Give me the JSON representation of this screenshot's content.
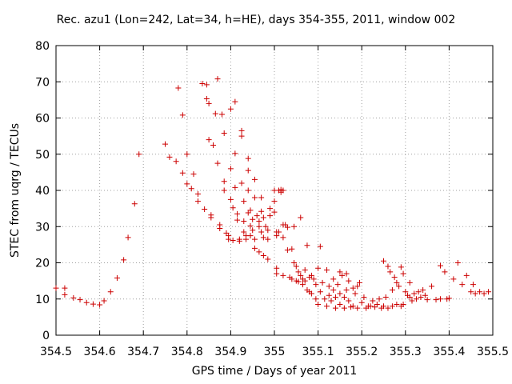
{
  "chart_data": {
    "type": "scatter",
    "title": "Rec. azu1 (Lon=242, Lat=34, h=HE), days 354-355, 2011, window 002",
    "xlabel": "GPS time / Days of year 2011",
    "ylabel": "STEC from uqrg / TECUs",
    "xlim": [
      354.5,
      355.5
    ],
    "ylim": [
      0,
      80
    ],
    "xticks": [
      "354.5",
      "354.6",
      "354.7",
      "354.8",
      "354.9",
      "355",
      "355.1",
      "355.2",
      "355.3",
      "355.4",
      "355.5"
    ],
    "yticks": [
      "0",
      "10",
      "20",
      "30",
      "40",
      "50",
      "60",
      "70",
      "80"
    ],
    "grid": true,
    "marker": "plus",
    "color": "#cc0000",
    "series": [
      {
        "points": [
          [
            354.5,
            13.0
          ],
          [
            354.52,
            13.0
          ],
          [
            354.52,
            11.2
          ],
          [
            354.54,
            10.3
          ],
          [
            354.555,
            9.8
          ],
          [
            354.57,
            9.0
          ],
          [
            354.585,
            8.6
          ],
          [
            354.6,
            8.4
          ],
          [
            354.61,
            9.5
          ],
          [
            354.625,
            12.0
          ],
          [
            354.64,
            15.8
          ],
          [
            354.655,
            20.8
          ],
          [
            354.665,
            27.0
          ],
          [
            354.68,
            36.3
          ],
          [
            354.69,
            50.0
          ],
          [
            354.75,
            52.8
          ],
          [
            354.76,
            49.2
          ],
          [
            354.775,
            48.0
          ],
          [
            354.78,
            68.3
          ],
          [
            354.79,
            60.8
          ],
          [
            354.79,
            44.8
          ],
          [
            354.8,
            50.0
          ],
          [
            354.8,
            41.8
          ],
          [
            354.81,
            40.5
          ],
          [
            354.815,
            44.5
          ],
          [
            354.825,
            39.0
          ],
          [
            354.825,
            37.0
          ],
          [
            354.835,
            69.5
          ],
          [
            354.84,
            34.8
          ],
          [
            354.845,
            69.2
          ],
          [
            354.845,
            65.3
          ],
          [
            354.85,
            64.0
          ],
          [
            354.85,
            54.0
          ],
          [
            354.855,
            33.2
          ],
          [
            354.855,
            32.5
          ],
          [
            354.86,
            52.5
          ],
          [
            354.865,
            61.2
          ],
          [
            354.87,
            70.8
          ],
          [
            354.87,
            47.5
          ],
          [
            354.875,
            30.5
          ],
          [
            354.875,
            29.5
          ],
          [
            354.88,
            61.0
          ],
          [
            354.885,
            55.8
          ],
          [
            354.885,
            42.5
          ],
          [
            354.885,
            40.0
          ],
          [
            354.89,
            28.2
          ],
          [
            354.895,
            27.5
          ],
          [
            354.895,
            26.5
          ],
          [
            354.9,
            62.5
          ],
          [
            354.9,
            46.0
          ],
          [
            354.9,
            37.5
          ],
          [
            354.905,
            35.2
          ],
          [
            354.905,
            26.2
          ],
          [
            354.91,
            64.5
          ],
          [
            354.91,
            50.2
          ],
          [
            354.91,
            40.8
          ],
          [
            354.915,
            33.5
          ],
          [
            354.915,
            31.8
          ],
          [
            354.92,
            26.5
          ],
          [
            354.92,
            26.0
          ],
          [
            354.925,
            56.5
          ],
          [
            354.925,
            55.0
          ],
          [
            354.925,
            42.0
          ],
          [
            354.93,
            37.0
          ],
          [
            354.93,
            31.5
          ],
          [
            354.93,
            28.5
          ],
          [
            354.935,
            27.5
          ],
          [
            354.935,
            26.5
          ],
          [
            354.94,
            48.8
          ],
          [
            354.94,
            45.5
          ],
          [
            354.94,
            40.0
          ],
          [
            354.94,
            33.8
          ],
          [
            354.945,
            34.5
          ],
          [
            354.945,
            30.2
          ],
          [
            354.945,
            27.5
          ],
          [
            354.95,
            32.0
          ],
          [
            354.95,
            29.0
          ],
          [
            354.955,
            43.0
          ],
          [
            354.955,
            38.0
          ],
          [
            354.955,
            26.5
          ],
          [
            354.955,
            24.0
          ],
          [
            354.96,
            33.0
          ],
          [
            354.965,
            31.5
          ],
          [
            354.965,
            30.0
          ],
          [
            354.965,
            23.0
          ],
          [
            354.97,
            38.0
          ],
          [
            354.97,
            34.2
          ],
          [
            354.97,
            28.5
          ],
          [
            354.975,
            32.5
          ],
          [
            354.975,
            27.0
          ],
          [
            354.975,
            22.0
          ],
          [
            354.98,
            30.0
          ],
          [
            354.985,
            29.0
          ],
          [
            354.985,
            26.5
          ],
          [
            354.985,
            21.0
          ],
          [
            354.99,
            35.0
          ],
          [
            354.99,
            33.0
          ],
          [
            355.0,
            40.0
          ],
          [
            355.0,
            37.0
          ],
          [
            355.0,
            34.0
          ],
          [
            355.005,
            28.5
          ],
          [
            355.005,
            27.5
          ],
          [
            355.005,
            18.5
          ],
          [
            355.005,
            17.0
          ],
          [
            355.01,
            40.0
          ],
          [
            355.01,
            28.5
          ],
          [
            355.015,
            40.2
          ],
          [
            355.015,
            39.5
          ],
          [
            355.02,
            40.0
          ],
          [
            355.02,
            30.5
          ],
          [
            355.02,
            27.0
          ],
          [
            355.02,
            16.5
          ],
          [
            355.025,
            30.5
          ],
          [
            355.03,
            29.8
          ],
          [
            355.03,
            23.5
          ],
          [
            355.035,
            16.0
          ],
          [
            355.04,
            23.8
          ],
          [
            355.04,
            15.5
          ],
          [
            355.045,
            30.0
          ],
          [
            355.045,
            20.0
          ],
          [
            355.05,
            19.0
          ],
          [
            355.05,
            15.0
          ],
          [
            355.055,
            17.5
          ],
          [
            355.055,
            14.8
          ],
          [
            355.06,
            32.5
          ],
          [
            355.06,
            16.5
          ],
          [
            355.065,
            15.5
          ],
          [
            355.065,
            14.0
          ],
          [
            355.07,
            18.0
          ],
          [
            355.07,
            15.0
          ],
          [
            355.075,
            24.8
          ],
          [
            355.075,
            12.5
          ],
          [
            355.08,
            16.0
          ],
          [
            355.08,
            12.0
          ],
          [
            355.085,
            16.5
          ],
          [
            355.085,
            11.5
          ],
          [
            355.09,
            15.5
          ],
          [
            355.095,
            14.0
          ],
          [
            355.095,
            10.0
          ],
          [
            355.1,
            18.5
          ],
          [
            355.1,
            8.5
          ],
          [
            355.105,
            24.5
          ],
          [
            355.105,
            12.0
          ],
          [
            355.11,
            14.5
          ],
          [
            355.115,
            10.0
          ],
          [
            355.12,
            18.0
          ],
          [
            355.12,
            8.0
          ],
          [
            355.125,
            13.5
          ],
          [
            355.125,
            11.0
          ],
          [
            355.13,
            9.5
          ],
          [
            355.135,
            15.5
          ],
          [
            355.135,
            12.5
          ],
          [
            355.14,
            10.5
          ],
          [
            355.14,
            7.5
          ],
          [
            355.145,
            14.0
          ],
          [
            355.15,
            17.5
          ],
          [
            355.15,
            11.5
          ],
          [
            355.15,
            8.5
          ],
          [
            355.155,
            16.5
          ],
          [
            355.16,
            10.5
          ],
          [
            355.16,
            7.5
          ],
          [
            355.165,
            17.0
          ],
          [
            355.165,
            12.5
          ],
          [
            355.17,
            15.0
          ],
          [
            355.17,
            9.5
          ],
          [
            355.175,
            7.8
          ],
          [
            355.18,
            13.0
          ],
          [
            355.18,
            8.0
          ],
          [
            355.185,
            11.5
          ],
          [
            355.19,
            13.5
          ],
          [
            355.19,
            7.5
          ],
          [
            355.195,
            14.5
          ],
          [
            355.2,
            9.0
          ],
          [
            355.205,
            10.5
          ],
          [
            355.21,
            7.5
          ],
          [
            355.215,
            8.0
          ],
          [
            355.22,
            8.0
          ],
          [
            355.225,
            9.5
          ],
          [
            355.23,
            7.8
          ],
          [
            355.235,
            8.5
          ],
          [
            355.24,
            10.0
          ],
          [
            355.245,
            7.5
          ],
          [
            355.25,
            8.0
          ],
          [
            355.25,
            20.5
          ],
          [
            355.255,
            10.5
          ],
          [
            355.26,
            7.5
          ],
          [
            355.26,
            19.0
          ],
          [
            355.265,
            17.5
          ],
          [
            355.27,
            8.0
          ],
          [
            355.27,
            12.5
          ],
          [
            355.275,
            16.0
          ],
          [
            355.28,
            14.5
          ],
          [
            355.28,
            8.5
          ],
          [
            355.285,
            13.5
          ],
          [
            355.29,
            18.8
          ],
          [
            355.29,
            8.0
          ],
          [
            355.295,
            17.0
          ],
          [
            355.295,
            8.5
          ],
          [
            355.3,
            12.0
          ],
          [
            355.305,
            11.0
          ],
          [
            355.31,
            10.5
          ],
          [
            355.31,
            14.5
          ],
          [
            355.315,
            9.5
          ],
          [
            355.32,
            11.5
          ],
          [
            355.325,
            10.0
          ],
          [
            355.33,
            12.0
          ],
          [
            355.335,
            10.5
          ],
          [
            355.34,
            12.5
          ],
          [
            355.345,
            11.0
          ],
          [
            355.35,
            9.8
          ],
          [
            355.36,
            13.5
          ],
          [
            355.37,
            9.8
          ],
          [
            355.38,
            19.2
          ],
          [
            355.38,
            10.0
          ],
          [
            355.39,
            17.5
          ],
          [
            355.395,
            10.0
          ],
          [
            355.4,
            10.2
          ],
          [
            355.41,
            15.5
          ],
          [
            355.42,
            20.0
          ],
          [
            355.43,
            14.0
          ],
          [
            355.44,
            16.5
          ],
          [
            355.45,
            12.0
          ],
          [
            355.455,
            14.0
          ],
          [
            355.46,
            11.5
          ],
          [
            355.47,
            12.0
          ],
          [
            355.48,
            11.5
          ],
          [
            355.49,
            12.0
          ]
        ]
      }
    ]
  }
}
